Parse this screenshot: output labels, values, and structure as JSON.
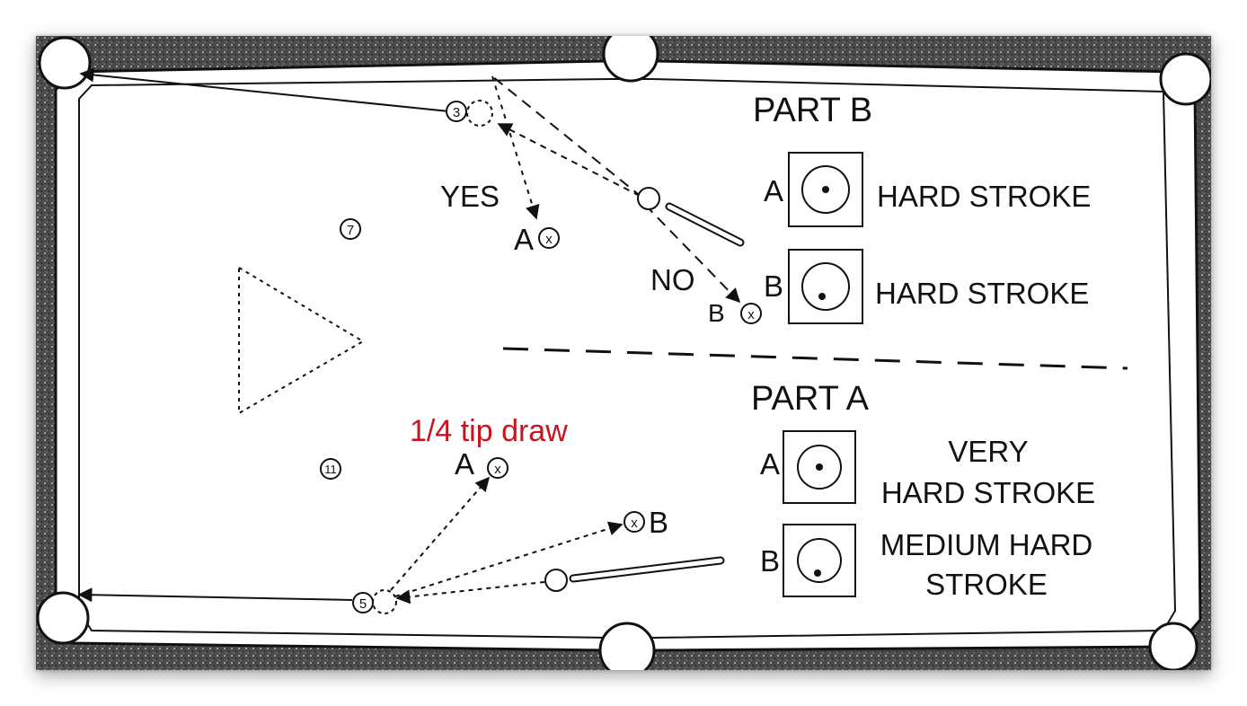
{
  "part_b": {
    "title": "PART B",
    "yes": "YES",
    "no": "NO",
    "target_a": "A",
    "target_b": "B",
    "row_a_letter": "A",
    "row_a_text": "HARD STROKE",
    "row_b_letter": "B",
    "row_b_text": "HARD STROKE"
  },
  "part_a": {
    "title": "PART A",
    "annotation": "1/4 tip draw",
    "target_a": "A",
    "target_b": "B",
    "row_a_letter": "A",
    "row_a_text_1": "VERY",
    "row_a_text_2": "HARD STROKE",
    "row_b_letter": "B",
    "row_b_text_1": "MEDIUM HARD",
    "row_b_text_2": "STROKE"
  },
  "balls": {
    "ball_3": "3",
    "ball_7": "7",
    "ball_11": "11",
    "ball_5": "5"
  },
  "colors": {
    "felt": "#ffffff",
    "rail": "#3a3a3a",
    "ink": "#111111",
    "annotation": "#c8141e"
  }
}
